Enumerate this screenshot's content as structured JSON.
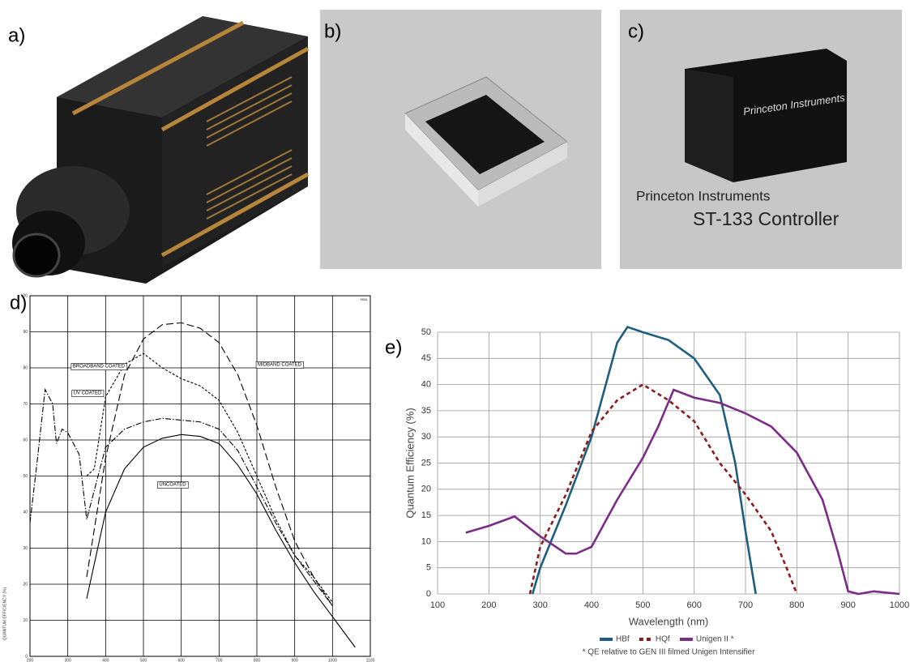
{
  "panels": {
    "a": {
      "label": "a)"
    },
    "b": {
      "label": "b)"
    },
    "c": {
      "label": "c)",
      "brand_box": "Princeton Instruments",
      "brand": "Princeton Instruments",
      "model": "ST-133 Controller"
    }
  },
  "chart_data": [
    {
      "type": "line",
      "panel_label": "d)",
      "ylabel": "QUANTUM EFFICIENCY (%)",
      "note": "7834",
      "xlim": [
        200,
        1100
      ],
      "xticks": [
        200,
        300,
        400,
        500,
        600,
        700,
        800,
        900,
        1000,
        1100
      ],
      "ylim": [
        0,
        100
      ],
      "yticks": [
        0,
        10,
        20,
        30,
        40,
        50,
        60,
        70,
        80,
        90,
        100
      ],
      "grid": true,
      "legend": "inline",
      "series": [
        {
          "name": "UNCOATED",
          "color": "#000000",
          "linestyle": "solid",
          "x": [
            350,
            400,
            450,
            500,
            550,
            600,
            650,
            700,
            750,
            800,
            850,
            900,
            950,
            1000,
            1060
          ],
          "values": [
            16,
            40,
            52,
            58,
            60.5,
            61.5,
            61,
            59,
            53,
            45,
            35,
            26,
            18,
            11,
            2.5
          ]
        },
        {
          "name": "MIDBAND COATED",
          "color": "#000000",
          "linestyle": "dashed",
          "x": [
            350,
            400,
            450,
            500,
            550,
            600,
            650,
            700,
            750,
            800,
            850,
            900,
            950,
            1000
          ],
          "values": [
            22,
            55,
            78,
            88,
            92,
            92.5,
            91,
            87,
            78,
            64,
            47,
            32,
            22,
            14
          ]
        },
        {
          "name": "BROADBAND COATED",
          "color": "#000000",
          "linestyle": "dotted",
          "x": [
            350,
            370,
            400,
            450,
            500,
            550,
            600,
            650,
            700,
            750,
            800,
            850,
            900,
            950,
            1000
          ],
          "values": [
            50,
            52,
            72,
            81,
            84,
            80,
            77,
            75,
            71,
            62,
            50,
            38,
            28,
            22,
            15
          ]
        },
        {
          "name": "UV COATED",
          "color": "#000000",
          "linestyle": "dashdot",
          "x": [
            200,
            220,
            240,
            260,
            270,
            285,
            300,
            330,
            350,
            400,
            450,
            500,
            550,
            600,
            650,
            700,
            750,
            800,
            850,
            900,
            950,
            1000
          ],
          "values": [
            37,
            55,
            74,
            70,
            59,
            63,
            62,
            56,
            38,
            58,
            63,
            65,
            66,
            65.5,
            65,
            63,
            57,
            47,
            37,
            28,
            21,
            14
          ]
        }
      ]
    },
    {
      "type": "line",
      "panel_label": "e)",
      "xlabel": "Wavelength (nm)",
      "ylabel": "Quantum Efficiency  (%)",
      "footnote": "* QE relative to GEN III filmed Unigen Intensifier",
      "xlim": [
        100,
        1000
      ],
      "xticks": [
        100,
        200,
        300,
        400,
        500,
        600,
        700,
        800,
        900,
        1000
      ],
      "ylim": [
        0,
        50
      ],
      "yticks": [
        0,
        5,
        10,
        15,
        20,
        25,
        30,
        35,
        40,
        45,
        50
      ],
      "grid": true,
      "legend": "bottom",
      "series": [
        {
          "name": "HBf",
          "color": "#1f5e7f",
          "linestyle": "solid",
          "x": [
            285,
            300,
            350,
            400,
            450,
            470,
            500,
            550,
            600,
            650,
            680,
            700,
            720
          ],
          "values": [
            0,
            5,
            17,
            30,
            48,
            51,
            50,
            48.5,
            45,
            38,
            25,
            12,
            0
          ]
        },
        {
          "name": "HQf",
          "color": "#8b1a1a",
          "linestyle": "dotted",
          "x": [
            280,
            300,
            350,
            400,
            450,
            500,
            550,
            600,
            650,
            700,
            750,
            780,
            800
          ],
          "values": [
            0,
            9,
            19,
            31,
            37,
            40,
            37,
            33,
            25,
            19,
            12,
            5,
            0
          ]
        },
        {
          "name": "Unigen II *",
          "color": "#7b2c86",
          "linestyle": "solid",
          "x": [
            155,
            200,
            250,
            300,
            350,
            370,
            400,
            450,
            500,
            530,
            560,
            600,
            650,
            700,
            750,
            800,
            850,
            880,
            900,
            920,
            950,
            1000
          ],
          "values": [
            11.7,
            13,
            14.8,
            11,
            7.7,
            7.7,
            9,
            18,
            26,
            32,
            39,
            37.5,
            36.5,
            34.5,
            32,
            27,
            18,
            8,
            0.5,
            0,
            0.5,
            0
          ]
        }
      ]
    }
  ]
}
